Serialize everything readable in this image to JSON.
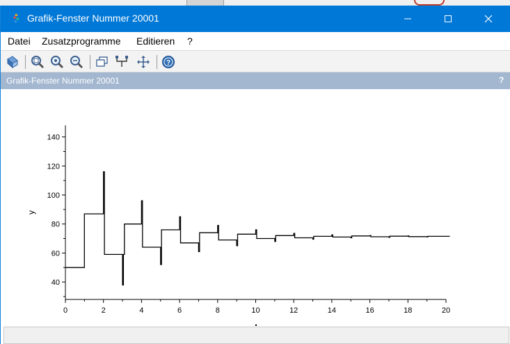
{
  "window": {
    "title": "Grafik-Fenster Nummer 20001",
    "minimize_label": "Minimieren",
    "maximize_label": "Maximieren",
    "close_label": "Schließen"
  },
  "menu": [
    {
      "label": "Datei"
    },
    {
      "label": "Zusatzprogramme"
    },
    {
      "label": "Editieren"
    },
    {
      "label": "?"
    }
  ],
  "toolbar": {
    "icons": [
      "select-icon",
      "zoom-area-icon",
      "zoom-in-icon",
      "zoom-out-icon",
      "rotate-icon",
      "data-tip-icon",
      "pan-icon",
      "help-icon"
    ]
  },
  "panel": {
    "title": "Grafik-Fenster Nummer 20001",
    "help": "?"
  },
  "colors": {
    "titlebar": "#0078d7",
    "panelbar": "#a3b7d0",
    "line": "#000000"
  },
  "chart_data": {
    "type": "line",
    "ylabel": "y",
    "xlabel": "",
    "xlim": [
      0,
      20
    ],
    "ylim": [
      28,
      148
    ],
    "xticks": [
      "0",
      "2",
      "4",
      "6",
      "8",
      "10",
      "12",
      "14",
      "16",
      "18",
      "20"
    ],
    "yticks": [
      "40",
      "60",
      "80",
      "100",
      "120",
      "140"
    ],
    "series": [
      {
        "x": [
          0,
          1,
          1,
          2,
          2,
          2.05,
          2.05,
          3,
          3,
          3.05,
          3.05,
          3.1,
          3.1,
          4,
          4,
          4.05,
          4.05,
          5,
          5,
          5.05,
          5.05,
          6,
          6,
          6.05,
          6.05,
          7,
          7,
          7.05,
          7.05,
          8,
          8,
          8.05,
          8.05,
          9,
          9,
          9.05,
          9.05,
          10,
          10,
          10.05,
          10.05,
          11,
          11,
          11.05,
          11.05,
          12,
          12,
          12.05,
          12.05,
          13,
          13,
          13.05,
          13.05,
          14,
          14,
          14.05,
          14.05,
          15,
          15,
          15.05,
          15.05,
          16,
          16,
          16.05,
          16.05,
          17,
          17,
          17.05,
          17.05,
          18,
          18,
          18.05,
          18.05,
          19,
          19,
          19.05,
          19.05,
          20.2
        ],
        "y": [
          50,
          50,
          87,
          87,
          116,
          116,
          59,
          59,
          38,
          38,
          59,
          59,
          80,
          80,
          96,
          96,
          64,
          64,
          52,
          52,
          76,
          76,
          85,
          85,
          67,
          67,
          61,
          61,
          74,
          74,
          79,
          79,
          69,
          69,
          65,
          65,
          73,
          73,
          76,
          76,
          70,
          70,
          68,
          68,
          72,
          72,
          73.5,
          73.5,
          70.5,
          70.5,
          69.5,
          69.5,
          71.5,
          71.5,
          72.5,
          72.5,
          71,
          71,
          70.5,
          70.5,
          71.8,
          71.8,
          72,
          72,
          71.2,
          71.2,
          70.8,
          70.8,
          71.6,
          71.6,
          71.8,
          71.8,
          71.3,
          71.3,
          71.1,
          71.1,
          71.5,
          71.5
        ]
      }
    ]
  }
}
